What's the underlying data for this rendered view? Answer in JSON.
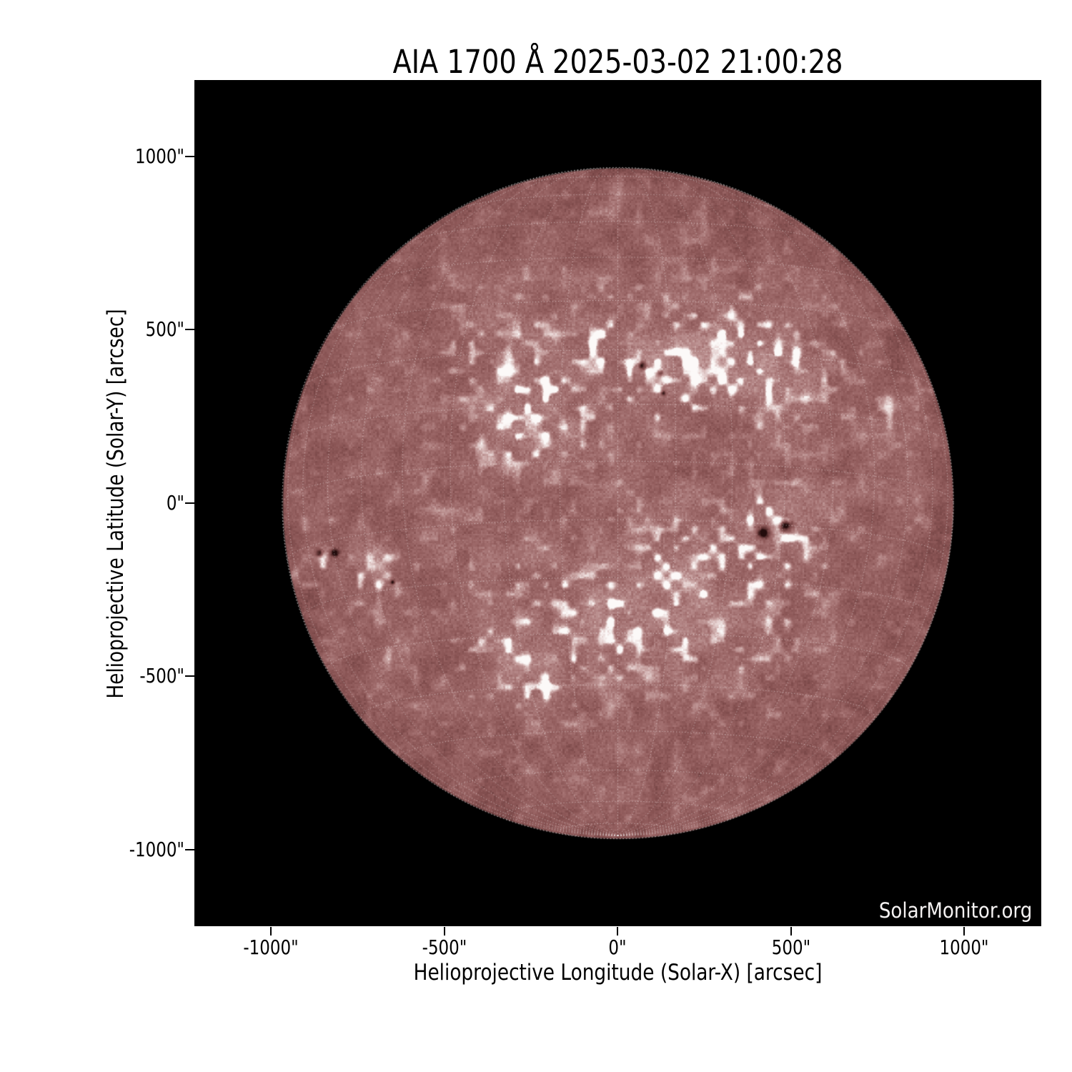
{
  "title": "AIA 1700 Å 2025-03-02 21:00:28",
  "watermark": "SolarMonitor.org",
  "axes": {
    "x": {
      "label": "Helioprojective Longitude (Solar-X) [arcsec]",
      "ticks": [
        "-1000\"",
        "-500\"",
        "0\"",
        "500\"",
        "1000\""
      ]
    },
    "y": {
      "label": "Helioprojective Latitude (Solar-Y) [arcsec]",
      "ticks": [
        "1000\"",
        "500\"",
        "0\"",
        "-500\"",
        "-1000\""
      ]
    }
  },
  "chart_data": {
    "type": "heatmap",
    "title": "AIA 1700 Å 2025-03-02 21:00:28",
    "instrument": "AIA",
    "wavelength": "1700 Å",
    "observation_time": "2025-03-02 21:00:28",
    "xlabel": "Helioprojective Longitude (Solar-X) [arcsec]",
    "ylabel": "Helioprojective Latitude (Solar-Y) [arcsec]",
    "xlim": [
      -1222,
      1222
    ],
    "ylim": [
      -1221,
      1221
    ],
    "x_ticks_arcsec": [
      -1000,
      -500,
      0,
      500,
      1000
    ],
    "y_ticks_arcsec": [
      1000,
      500,
      0,
      -500,
      -1000
    ],
    "background_color": "#000000",
    "solar_disk": {
      "center_arcsec": [
        0,
        0
      ],
      "radius_arcsec": 967,
      "base_color": "#a06e6e",
      "dark_mottle_color": "#7e4e4e",
      "plage_color": "#f4ebea",
      "limb_color": "#6b3c3c"
    },
    "grid": {
      "type": "stonyhurst",
      "spacing_deg": 10,
      "b0_deg": -7.2,
      "color": "rgba(255,255,255,0.6)",
      "style": "dotted"
    },
    "features": {
      "sunspots_arcsec": [
        [
          419,
          -85,
          18,
          0.75
        ],
        [
          481,
          -60,
          22,
          0.8
        ],
        [
          -861,
          -144,
          13,
          0.6
        ],
        [
          -818,
          -142,
          13,
          0.62
        ],
        [
          -651,
          -227,
          8,
          0.5
        ],
        [
          69,
          398,
          12,
          0.6
        ],
        [
          121,
          375,
          10,
          0.55
        ],
        [
          131,
          318,
          8,
          0.5
        ]
      ],
      "plage_hotspots_arcsec": [
        [
          290,
          421,
          124,
          0.9
        ],
        [
          444,
          379,
          103,
          0.9
        ],
        [
          135,
          379,
          93,
          0.8
        ],
        [
          -236,
          245,
          113,
          0.85
        ],
        [
          -339,
          214,
          82,
          0.7
        ],
        [
          -51,
          482,
          72,
          0.6
        ],
        [
          743,
          287,
          62,
          0.65
        ],
        [
          888,
          307,
          37,
          0.7
        ],
        [
          176,
          -198,
          103,
          0.75
        ],
        [
          -9,
          -363,
          113,
          0.8
        ],
        [
          -215,
          -507,
          93,
          0.7
        ],
        [
          -339,
          -445,
          72,
          0.6
        ],
        [
          238,
          -342,
          82,
          0.65
        ],
        [
          -628,
          -414,
          62,
          0.5
        ],
        [
          444,
          -85,
          113,
          1.0
        ],
        [
          -861,
          -150,
          70,
          0.75
        ],
        [
          -690,
          -219,
          85,
          0.7
        ]
      ],
      "plage_bands_arcsec": [
        {
          "y_center": 410,
          "y_sigma": 150,
          "x_range": [
            -450,
            620
          ],
          "amplitude": 0.55
        },
        {
          "y_center": -310,
          "y_sigma": 170,
          "x_range": [
            -380,
            520
          ],
          "amplitude": 0.5
        }
      ]
    },
    "credit": "SolarMonitor.org"
  }
}
